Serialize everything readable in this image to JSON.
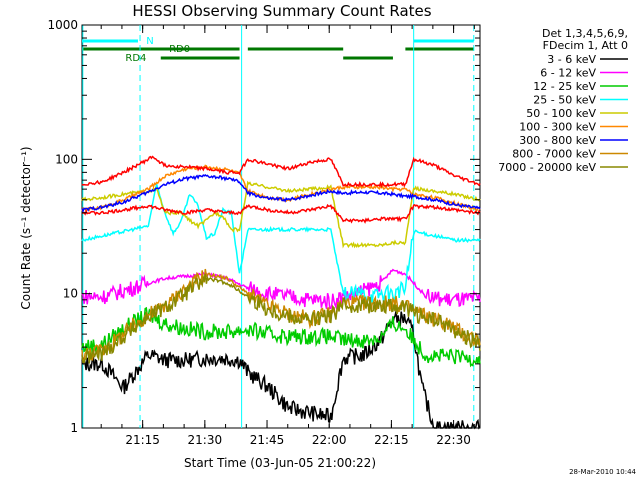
{
  "chart_data": {
    "type": "line",
    "title": "HESSI Observing Summary Count Rates",
    "xlabel": "Start Time (03-Jun-05 21:00:22)",
    "ylabel": "Count Rate (s⁻¹ detector⁻¹)",
    "y_scale": "log",
    "ylim": [
      1,
      1000
    ],
    "y_ticks": [
      "1",
      "10",
      "100",
      "1000"
    ],
    "x_ticks": [
      "21:15",
      "21:30",
      "21:45",
      "22:00",
      "22:15",
      "22:30"
    ],
    "xlim_minutes": [
      0,
      96
    ],
    "legend_header": [
      "Det 1,3,4,5,6,9,",
      "FDecim 1, Att 0"
    ],
    "legend_position": "right",
    "series": [
      {
        "name": "3 - 6 keV",
        "color": "#000000",
        "x": [
          0,
          5,
          10,
          16,
          20,
          25,
          30,
          34,
          38,
          40,
          45,
          50,
          55,
          60,
          63,
          68,
          72,
          75,
          78,
          80,
          82,
          85,
          88,
          90,
          93,
          96
        ],
        "y": [
          3.0,
          3.0,
          2.0,
          3.5,
          3.2,
          3.2,
          3.3,
          3.3,
          3.2,
          2.6,
          2.0,
          1.4,
          1.3,
          1.2,
          3.3,
          3.5,
          4.5,
          6.5,
          6.5,
          5.0,
          2.0,
          1.0,
          1.0,
          1.0,
          1.0,
          1.0
        ]
      },
      {
        "name": "6 - 12 keV",
        "color": "#ff00ff",
        "x": [
          0,
          5,
          10,
          16,
          20,
          25,
          30,
          35,
          40,
          45,
          50,
          55,
          60,
          63,
          68,
          72,
          75,
          78,
          80,
          83,
          88,
          96
        ],
        "y": [
          9.5,
          9.5,
          10.5,
          12,
          13,
          13.5,
          14,
          13,
          11,
          10,
          9.5,
          9,
          8.8,
          9.5,
          10.5,
          12,
          15,
          14,
          12,
          9.5,
          9.0,
          9.0
        ]
      },
      {
        "name": "12 - 25 keV",
        "color": "#00cc00",
        "x": [
          0,
          5,
          10,
          16,
          20,
          25,
          30,
          35,
          40,
          45,
          50,
          55,
          60,
          63,
          68,
          72,
          75,
          78,
          80,
          83,
          88,
          96
        ],
        "y": [
          4.0,
          4.2,
          5.5,
          7.0,
          6.0,
          5.5,
          5.2,
          5.2,
          5.4,
          5.0,
          4.8,
          4.8,
          4.8,
          4.5,
          4.5,
          4.7,
          6.0,
          5.5,
          4.5,
          3.5,
          3.4,
          3.3
        ]
      },
      {
        "name": "25 - 50 keV",
        "color": "#00ffff",
        "x": [
          0,
          5,
          10,
          16,
          18,
          20,
          22,
          24,
          26,
          28,
          30,
          32,
          34,
          36,
          38,
          40,
          45,
          50,
          55,
          60,
          63,
          65,
          68,
          70,
          72,
          75,
          78,
          80,
          85,
          90,
          96
        ],
        "y": [
          25,
          27,
          29,
          32,
          65,
          40,
          28,
          35,
          55,
          45,
          26,
          28,
          42,
          40,
          14,
          30,
          30,
          30,
          30,
          30,
          10,
          10,
          10,
          9.5,
          10,
          10,
          11,
          29,
          27,
          25,
          25
        ]
      },
      {
        "name": "50 - 100 keV",
        "color": "#cccc00",
        "x": [
          0,
          5,
          10,
          16,
          18,
          20,
          22,
          24,
          26,
          28,
          30,
          32,
          34,
          36,
          38,
          40,
          45,
          50,
          55,
          60,
          63,
          68,
          72,
          75,
          78,
          80,
          85,
          90,
          96
        ],
        "y": [
          50,
          52,
          55,
          58,
          60,
          40,
          40,
          40,
          35,
          32,
          35,
          40,
          38,
          30,
          30,
          66,
          62,
          58,
          60,
          62,
          23,
          23,
          23,
          24,
          24,
          61,
          58,
          55,
          50
        ]
      },
      {
        "name": "100 - 300 keV",
        "color": "#ff8800",
        "x": [
          0,
          5,
          10,
          16,
          20,
          25,
          30,
          35,
          38,
          40,
          45,
          50,
          55,
          60,
          63,
          68,
          72,
          75,
          78,
          80,
          85,
          90,
          96
        ],
        "y": [
          42,
          44,
          50,
          60,
          75,
          85,
          88,
          84,
          78,
          58,
          52,
          50,
          55,
          60,
          62,
          62,
          62,
          60,
          60,
          55,
          52,
          47,
          42
        ]
      },
      {
        "name": "300 - 800 keV",
        "color": "#0000ff",
        "x": [
          0,
          5,
          10,
          16,
          20,
          25,
          30,
          35,
          38,
          40,
          45,
          50,
          55,
          60,
          63,
          68,
          72,
          75,
          78,
          80,
          85,
          90,
          96
        ],
        "y": [
          42,
          44,
          48,
          57,
          65,
          72,
          75,
          72,
          68,
          56,
          51,
          50,
          54,
          58,
          56,
          57,
          56,
          55,
          53,
          53,
          50,
          46,
          43
        ]
      },
      {
        "name": "800 - 7000 keV",
        "color": "#cc8800",
        "x": [
          0,
          5,
          10,
          16,
          20,
          25,
          30,
          35,
          40,
          45,
          50,
          55,
          60,
          63,
          68,
          72,
          75,
          78,
          80,
          83,
          88,
          92,
          96
        ],
        "y": [
          3.5,
          3.8,
          5.0,
          7.0,
          8.0,
          11,
          14,
          13,
          10,
          8.0,
          7.0,
          6.5,
          7.0,
          8.5,
          8.5,
          8.5,
          8.5,
          8.0,
          7.5,
          6.8,
          6.0,
          5.0,
          4.5
        ]
      },
      {
        "name": "7000 - 20000 keV",
        "color": "#888800",
        "x": [
          0,
          5,
          10,
          16,
          20,
          25,
          30,
          35,
          40,
          45,
          50,
          55,
          60,
          63,
          68,
          72,
          75,
          78,
          80,
          83,
          88,
          92,
          96
        ],
        "y": [
          3.3,
          3.6,
          4.8,
          6.8,
          7.8,
          10,
          13,
          12,
          9.5,
          7.6,
          6.8,
          6.4,
          6.8,
          8.2,
          8.2,
          8.2,
          8.2,
          7.8,
          7.2,
          6.6,
          5.8,
          4.8,
          4.3
        ]
      },
      {
        "name": "",
        "color": "#ff0000",
        "x": [
          0,
          5,
          10,
          16,
          17,
          20,
          25,
          30,
          35,
          38,
          40,
          45,
          50,
          55,
          60,
          63,
          68,
          72,
          75,
          78,
          80,
          85,
          90,
          96
        ],
        "y": [
          65,
          68,
          80,
          100,
          105,
          90,
          88,
          85,
          80,
          80,
          100,
          92,
          85,
          95,
          100,
          65,
          65,
          65,
          65,
          65,
          100,
          90,
          75,
          65
        ]
      },
      {
        "name": "",
        "color": "#ff0000",
        "x": [
          0,
          5,
          10,
          16,
          20,
          25,
          30,
          35,
          38,
          40,
          45,
          50,
          55,
          60,
          63,
          68,
          72,
          75,
          78,
          80,
          85,
          90,
          96
        ],
        "y": [
          40,
          40,
          42,
          45,
          42,
          40,
          42,
          40,
          40,
          45,
          42,
          40,
          42,
          45,
          35,
          35,
          36,
          36,
          36,
          45,
          44,
          42,
          40
        ]
      }
    ],
    "annotations": {
      "state_bar_N": {
        "label": "N",
        "color": "#00ffff"
      },
      "state_bar_RD0": {
        "label": "RD0",
        "color": "#007700"
      },
      "state_bar_RD4": {
        "label": "RD4",
        "color": "#007700"
      }
    },
    "grid": false
  },
  "footer_timestamp": "28-Mar-2010 10:44"
}
